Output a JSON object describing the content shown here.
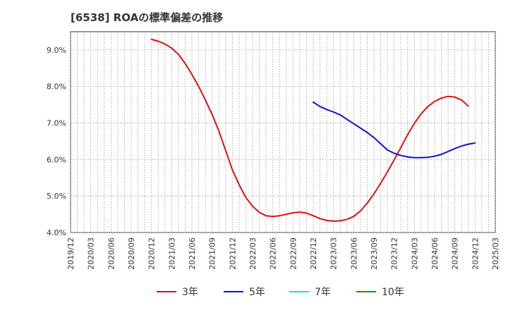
{
  "chart_data": {
    "type": "line",
    "title": "[6538]  ROAの標準偏差の推移",
    "xlabel": "",
    "ylabel": "",
    "ylim": [
      4.0,
      9.5
    ],
    "y_ticks": [
      "4.0%",
      "5.0%",
      "6.0%",
      "7.0%",
      "8.0%",
      "9.0%"
    ],
    "y_tick_values": [
      4.0,
      5.0,
      6.0,
      7.0,
      8.0,
      9.0
    ],
    "x_start": "2019/12",
    "x_ticks": [
      "2019/12",
      "2020/03",
      "2020/06",
      "2020/09",
      "2020/12",
      "2021/03",
      "2021/06",
      "2021/09",
      "2021/12",
      "2022/03",
      "2022/06",
      "2022/09",
      "2022/12",
      "2023/03",
      "2023/06",
      "2023/09",
      "2023/12",
      "2024/03",
      "2024/06",
      "2024/09",
      "2024/12",
      "2025/03"
    ],
    "grid": true,
    "legend_position": "bottom",
    "series": [
      {
        "name": "3年",
        "color": "#dd1111",
        "points": [
          [
            "2020/12",
            9.29
          ],
          [
            "2021/01",
            9.24
          ],
          [
            "2021/02",
            9.16
          ],
          [
            "2021/03",
            9.05
          ],
          [
            "2021/04",
            8.88
          ],
          [
            "2021/05",
            8.63
          ],
          [
            "2021/06",
            8.33
          ],
          [
            "2021/07",
            8.0
          ],
          [
            "2021/08",
            7.63
          ],
          [
            "2021/09",
            7.23
          ],
          [
            "2021/10",
            6.78
          ],
          [
            "2021/11",
            6.25
          ],
          [
            "2021/12",
            5.72
          ],
          [
            "2022/01",
            5.31
          ],
          [
            "2022/02",
            4.96
          ],
          [
            "2022/03",
            4.72
          ],
          [
            "2022/04",
            4.55
          ],
          [
            "2022/05",
            4.46
          ],
          [
            "2022/06",
            4.44
          ],
          [
            "2022/07",
            4.46
          ],
          [
            "2022/08",
            4.5
          ],
          [
            "2022/09",
            4.54
          ],
          [
            "2022/10",
            4.56
          ],
          [
            "2022/11",
            4.53
          ],
          [
            "2022/12",
            4.46
          ],
          [
            "2023/01",
            4.38
          ],
          [
            "2023/02",
            4.33
          ],
          [
            "2023/03",
            4.31
          ],
          [
            "2023/04",
            4.32
          ],
          [
            "2023/05",
            4.36
          ],
          [
            "2023/06",
            4.44
          ],
          [
            "2023/07",
            4.59
          ],
          [
            "2023/08",
            4.8
          ],
          [
            "2023/09",
            5.06
          ],
          [
            "2023/10",
            5.35
          ],
          [
            "2023/11",
            5.66
          ],
          [
            "2023/12",
            5.99
          ],
          [
            "2024/01",
            6.33
          ],
          [
            "2024/02",
            6.68
          ],
          [
            "2024/03",
            6.99
          ],
          [
            "2024/04",
            7.25
          ],
          [
            "2024/05",
            7.45
          ],
          [
            "2024/06",
            7.59
          ],
          [
            "2024/07",
            7.68
          ],
          [
            "2024/08",
            7.73
          ],
          [
            "2024/09",
            7.71
          ],
          [
            "2024/10",
            7.63
          ],
          [
            "2024/11",
            7.46
          ]
        ]
      },
      {
        "name": "5年",
        "color": "#1111cc",
        "points": [
          [
            "2022/12",
            7.57
          ],
          [
            "2023/01",
            7.45
          ],
          [
            "2023/02",
            7.37
          ],
          [
            "2023/03",
            7.3
          ],
          [
            "2023/04",
            7.22
          ],
          [
            "2023/05",
            7.1
          ],
          [
            "2023/06",
            6.98
          ],
          [
            "2023/07",
            6.86
          ],
          [
            "2023/08",
            6.74
          ],
          [
            "2023/09",
            6.6
          ],
          [
            "2023/10",
            6.43
          ],
          [
            "2023/11",
            6.26
          ],
          [
            "2023/12",
            6.17
          ],
          [
            "2024/01",
            6.11
          ],
          [
            "2024/02",
            6.07
          ],
          [
            "2024/03",
            6.05
          ],
          [
            "2024/04",
            6.05
          ],
          [
            "2024/05",
            6.06
          ],
          [
            "2024/06",
            6.09
          ],
          [
            "2024/07",
            6.14
          ],
          [
            "2024/08",
            6.22
          ],
          [
            "2024/09",
            6.3
          ],
          [
            "2024/10",
            6.37
          ],
          [
            "2024/11",
            6.42
          ],
          [
            "2024/12",
            6.45
          ]
        ]
      },
      {
        "name": "7年",
        "color": "#00e0ff",
        "points": []
      },
      {
        "name": "10年",
        "color": "#228b22",
        "points": []
      }
    ]
  }
}
